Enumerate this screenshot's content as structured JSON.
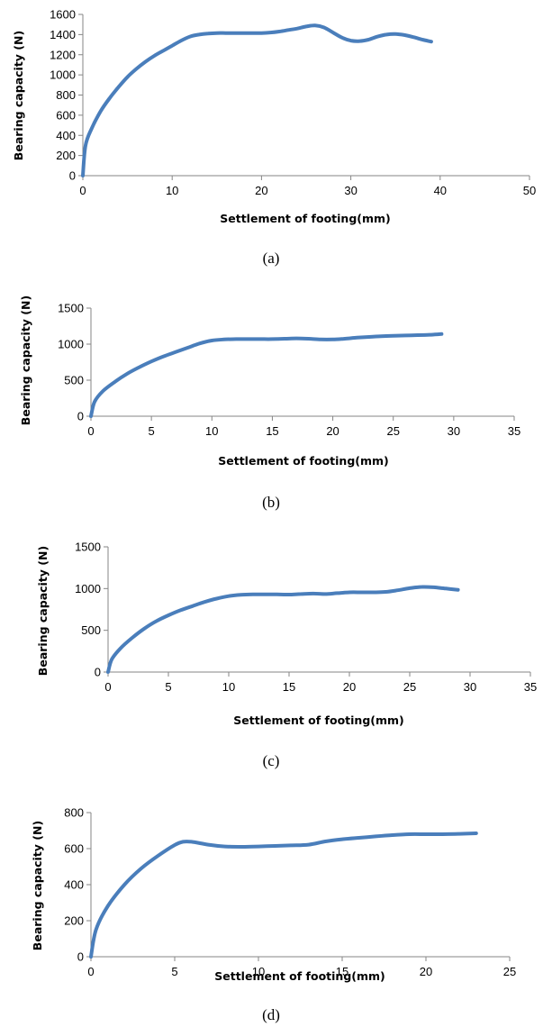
{
  "line_color": "#4a7ebb",
  "chart_data": [
    {
      "type": "line",
      "caption": "(a)",
      "xlabel": "Settlement of footing(mm)",
      "ylabel": "Bearing capacity (N)",
      "xlim": [
        0,
        50
      ],
      "ylim": [
        0,
        1600
      ],
      "xticks": [
        0,
        10,
        20,
        30,
        40,
        50
      ],
      "yticks": [
        0,
        200,
        400,
        600,
        800,
        1000,
        1200,
        1400,
        1600
      ],
      "grid": false,
      "series": [
        {
          "x": [
            0,
            0.3,
            1,
            2,
            3,
            4,
            5,
            6,
            7,
            8,
            9,
            10,
            11,
            12,
            13,
            14,
            15,
            16,
            17,
            18,
            19,
            20,
            21,
            22,
            23,
            24,
            25,
            26,
            27,
            28,
            29,
            30,
            31,
            32,
            33,
            34,
            35,
            36,
            37,
            38,
            39
          ],
          "y": [
            0,
            300,
            470,
            640,
            770,
            880,
            980,
            1060,
            1130,
            1190,
            1240,
            1290,
            1340,
            1380,
            1400,
            1410,
            1415,
            1415,
            1415,
            1415,
            1415,
            1415,
            1420,
            1430,
            1445,
            1460,
            1480,
            1490,
            1470,
            1420,
            1370,
            1340,
            1335,
            1350,
            1380,
            1400,
            1405,
            1395,
            1375,
            1350,
            1330
          ]
        }
      ]
    },
    {
      "type": "line",
      "caption": "(b)",
      "xlabel": "Settlement of footing(mm)",
      "ylabel": "Bearing capacity (N)",
      "xlim": [
        0,
        35
      ],
      "ylim": [
        0,
        1500
      ],
      "xticks": [
        0,
        5,
        10,
        15,
        20,
        25,
        30,
        35
      ],
      "yticks": [
        0,
        500,
        1000,
        1500
      ],
      "grid": false,
      "series": [
        {
          "x": [
            0,
            0.3,
            1,
            2,
            3,
            4,
            5,
            6,
            7,
            8,
            9,
            10,
            11,
            12,
            13,
            14,
            15,
            16,
            17,
            18,
            19,
            20,
            21,
            22,
            23,
            24,
            25,
            26,
            27,
            28,
            29
          ],
          "y": [
            0,
            200,
            350,
            480,
            590,
            680,
            760,
            830,
            890,
            950,
            1010,
            1050,
            1065,
            1070,
            1070,
            1070,
            1070,
            1075,
            1080,
            1075,
            1065,
            1065,
            1075,
            1090,
            1100,
            1110,
            1115,
            1120,
            1125,
            1130,
            1140
          ]
        }
      ]
    },
    {
      "type": "line",
      "caption": "(c)",
      "xlabel": "Settlement of footing(mm)",
      "ylabel": "Bearing capacity (N)",
      "xlim": [
        0,
        35
      ],
      "ylim": [
        0,
        1500
      ],
      "xticks": [
        0,
        5,
        10,
        15,
        20,
        25,
        30,
        35
      ],
      "yticks": [
        0,
        500,
        1000,
        1500
      ],
      "grid": false,
      "series": [
        {
          "x": [
            0,
            0.3,
            1,
            2,
            3,
            4,
            5,
            6,
            7,
            8,
            9,
            10,
            11,
            12,
            13,
            14,
            15,
            16,
            17,
            18,
            19,
            20,
            21,
            22,
            23,
            24,
            25,
            26,
            27,
            28,
            29
          ],
          "y": [
            0,
            150,
            280,
            410,
            520,
            610,
            680,
            740,
            790,
            840,
            880,
            910,
            925,
            930,
            930,
            930,
            928,
            935,
            940,
            935,
            945,
            955,
            955,
            955,
            960,
            980,
            1005,
            1020,
            1015,
            1000,
            985
          ]
        }
      ]
    },
    {
      "type": "line",
      "caption": "(d)",
      "xlabel": "Settlement of footing(mm)",
      "ylabel": "Bearing capacity (N)",
      "xlim": [
        0,
        25
      ],
      "ylim": [
        0,
        800
      ],
      "xticks": [
        0,
        5,
        10,
        15,
        20,
        25
      ],
      "yticks": [
        0,
        200,
        400,
        600,
        800
      ],
      "grid": false,
      "series": [
        {
          "x": [
            0,
            0.3,
            1,
            2,
            3,
            4,
            5,
            5.5,
            6,
            7,
            8,
            9,
            10,
            11,
            12,
            13,
            14,
            15,
            16,
            17,
            18,
            19,
            20,
            21,
            22,
            23
          ],
          "y": [
            0,
            150,
            280,
            400,
            490,
            560,
            620,
            638,
            638,
            622,
            612,
            610,
            612,
            615,
            618,
            622,
            640,
            652,
            660,
            668,
            675,
            680,
            680,
            680,
            682,
            685
          ]
        }
      ]
    }
  ]
}
